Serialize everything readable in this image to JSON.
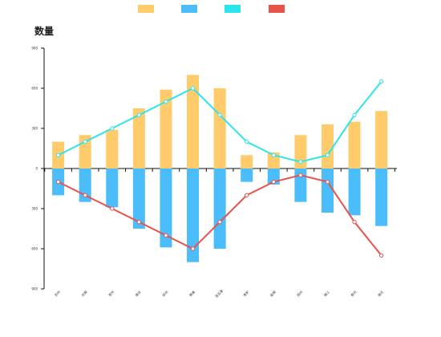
{
  "chart_data": {
    "type": "bar",
    "title": "数量",
    "xlabel": "",
    "ylabel": "",
    "categories": [
      "苏州",
      "无锡",
      "常州",
      "南京",
      "徐州",
      "南通",
      "连云港",
      "淮安",
      "盐城",
      "扬州",
      "镇江",
      "泰州",
      "宿迁"
    ],
    "ylim": [
      -900,
      900
    ],
    "yticks": [
      -900,
      -600,
      -300,
      0,
      300,
      600,
      900
    ],
    "ytick_labels": [
      "900",
      "600",
      "300",
      "0",
      "300",
      "600",
      "900"
    ],
    "grid": false,
    "legend_position": "top-center",
    "series": [
      {
        "type": "bar",
        "color": "#ffcb6b",
        "values": [
          200,
          250,
          290,
          450,
          590,
          700,
          600,
          100,
          120,
          250,
          330,
          350,
          430
        ]
      },
      {
        "type": "bar",
        "color": "#4bbdfb",
        "values": [
          -200,
          -250,
          -290,
          -450,
          -590,
          -700,
          -600,
          -100,
          -120,
          -250,
          -330,
          -350,
          -430
        ]
      },
      {
        "type": "line",
        "color": "#2ae6ec",
        "values": [
          100,
          200,
          300,
          400,
          500,
          600,
          400,
          200,
          100,
          50,
          100,
          400,
          650
        ]
      },
      {
        "type": "line",
        "color": "#e9524a",
        "values": [
          -100,
          -200,
          -300,
          -400,
          -500,
          -600,
          -400,
          -200,
          -100,
          -50,
          -100,
          -400,
          -650
        ]
      }
    ]
  }
}
